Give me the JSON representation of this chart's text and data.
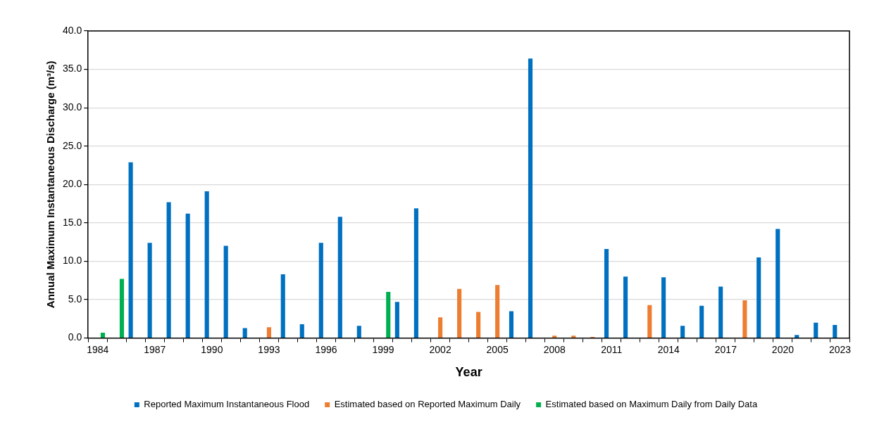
{
  "chart_data": {
    "type": "bar",
    "xlabel": "Year",
    "ylabel": "Annual Maximum Instantaneous Discharge (m³/s)",
    "categories": [
      "1984",
      null,
      null,
      "1987",
      null,
      null,
      "1990",
      null,
      null,
      "1993",
      null,
      null,
      "1996",
      null,
      null,
      "1999",
      null,
      null,
      "2002",
      null,
      null,
      "2005",
      null,
      null,
      "2008",
      null,
      null,
      "2011",
      null,
      null,
      "2014",
      null,
      null,
      "2017",
      null,
      null,
      "2020",
      null,
      null,
      "2023"
    ],
    "series": [
      {
        "name": "Reported Maximum Instantaneous Flood",
        "color": "#0070c0",
        "values": [
          null,
          null,
          22.9,
          12.4,
          17.7,
          16.2,
          19.1,
          12.0,
          1.3,
          null,
          8.3,
          1.8,
          12.4,
          15.8,
          1.6,
          null,
          4.7,
          16.9,
          null,
          null,
          null,
          null,
          3.5,
          36.4,
          null,
          null,
          null,
          11.6,
          8.0,
          null,
          7.9,
          1.6,
          4.2,
          6.7,
          null,
          10.5,
          14.2,
          0.4,
          2.0,
          1.7
        ]
      },
      {
        "name": "Estimated based on Reported Maximum Daily",
        "color": "#ed7d31",
        "values": [
          null,
          null,
          null,
          null,
          null,
          null,
          null,
          null,
          null,
          1.4,
          null,
          null,
          null,
          null,
          null,
          null,
          null,
          null,
          2.7,
          6.4,
          3.4,
          6.9,
          null,
          null,
          0.3,
          0.3,
          0.15,
          null,
          null,
          4.3,
          null,
          null,
          null,
          null,
          4.9,
          null,
          null,
          null,
          null,
          null
        ]
      },
      {
        "name": "Estimated based on Maximum Daily from Daily Data",
        "color": "#00b050",
        "values": [
          0.7,
          7.7,
          null,
          null,
          null,
          null,
          null,
          null,
          null,
          null,
          null,
          null,
          null,
          null,
          null,
          6.0,
          null,
          null,
          null,
          null,
          null,
          null,
          null,
          null,
          null,
          null,
          null,
          null,
          null,
          null,
          null,
          null,
          null,
          null,
          null,
          null,
          null,
          null,
          null,
          null
        ]
      }
    ],
    "ylim": [
      0,
      40
    ],
    "yticks": [
      {
        "value": 0,
        "label": "0.0"
      },
      {
        "value": 5,
        "label": "5.0"
      },
      {
        "value": 10,
        "label": "10.0"
      },
      {
        "value": 15,
        "label": "15.0"
      },
      {
        "value": 20,
        "label": "20.0"
      },
      {
        "value": 25,
        "label": "25.0"
      },
      {
        "value": 30,
        "label": "30.0"
      },
      {
        "value": 35,
        "label": "35.0"
      },
      {
        "value": 40,
        "label": "40.0"
      }
    ],
    "grid": "y",
    "legend": "bottom"
  }
}
